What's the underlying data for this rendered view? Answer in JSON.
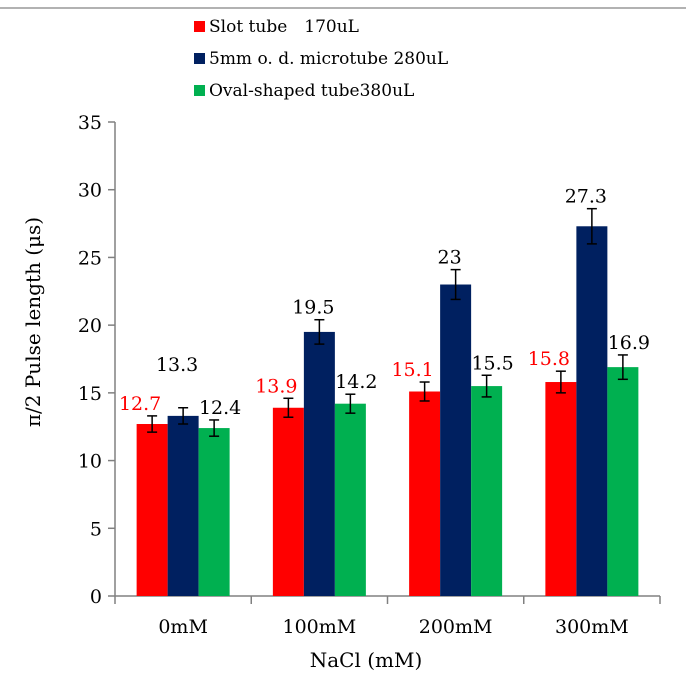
{
  "chart_data": {
    "type": "bar",
    "title": "",
    "xlabel": "NaCl (mM)",
    "ylabel": "π/2 Pulse length (μs)",
    "categories": [
      "0mM",
      "100mM",
      "200mM",
      "300mM"
    ],
    "ylim": [
      0,
      35
    ],
    "y_ticks": [
      "0",
      "5",
      "10",
      "15",
      "20",
      "25",
      "30",
      "35"
    ],
    "grid": false,
    "legend_position": "top",
    "series": [
      {
        "name": "Slot tube　170uL",
        "color": "#ff0000",
        "label_color": "#ff0000",
        "values": [
          12.7,
          13.9,
          15.1,
          15.8
        ],
        "labels": [
          "12.7",
          "13.9",
          "15.1",
          "15.8"
        ],
        "errors": [
          0.6,
          0.7,
          0.7,
          0.8
        ]
      },
      {
        "name": "5mm o. d. microtube 280uL",
        "color": "#002060",
        "label_color": "#000000",
        "values": [
          13.3,
          19.5,
          23,
          27.3
        ],
        "labels": [
          "13.3",
          "19.5",
          "23",
          "27.3"
        ],
        "errors": [
          0.6,
          0.9,
          1.1,
          1.3
        ]
      },
      {
        "name": "Oval-shaped tube380uL",
        "color": "#00b050",
        "label_color": "#000000",
        "values": [
          12.4,
          14.2,
          15.5,
          16.9
        ],
        "labels": [
          "12.4",
          "14.2",
          "15.5",
          "16.9"
        ],
        "errors": [
          0.6,
          0.7,
          0.8,
          0.9
        ]
      }
    ]
  }
}
